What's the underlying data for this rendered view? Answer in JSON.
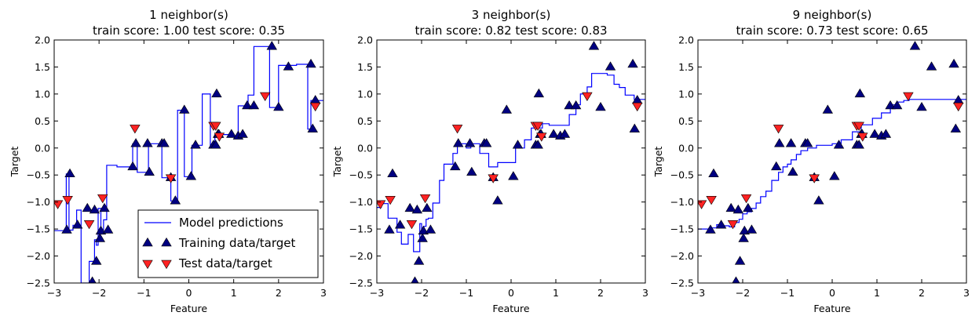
{
  "chart_data": [
    {
      "type": "line",
      "title": "1 neighbor(s)\ntrain score: 1.00 test score: 0.35",
      "xlabel": "Feature",
      "ylabel": "Target",
      "xlim": [
        -3,
        3
      ],
      "ylim": [
        -2.5,
        2.0
      ],
      "xticks": [
        "−3",
        "−2",
        "−1",
        "0",
        "1",
        "2",
        "3"
      ],
      "yticks": [
        "−2.5",
        "−2.0",
        "−1.5",
        "−1.0",
        "−0.5",
        "0.0",
        "0.5",
        "1.0",
        "1.5",
        "2.0"
      ],
      "prediction_line": {
        "x": [
          -3.0,
          -2.73,
          -2.73,
          -2.67,
          -2.67,
          -2.58,
          -2.58,
          -2.5,
          -2.5,
          -2.4,
          -2.4,
          -2.22,
          -2.22,
          -2.1,
          -2.1,
          -2.06,
          -2.06,
          -2.02,
          -2.02,
          -1.96,
          -1.96,
          -1.9,
          -1.9,
          -1.83,
          -1.83,
          -1.6,
          -1.6,
          -1.25,
          -1.25,
          -1.15,
          -1.15,
          -0.9,
          -0.9,
          -0.6,
          -0.6,
          -0.4,
          -0.4,
          -0.25,
          -0.25,
          -0.1,
          -0.1,
          0.07,
          0.07,
          0.3,
          0.3,
          0.48,
          0.48,
          0.58,
          0.58,
          0.63,
          0.63,
          0.7,
          0.7,
          0.95,
          0.95,
          1.1,
          1.1,
          1.18,
          1.18,
          1.32,
          1.32,
          1.45,
          1.45,
          1.8,
          1.8,
          2.0,
          2.0,
          2.4,
          2.4,
          2.65,
          2.65,
          2.72,
          2.72,
          2.8,
          2.8,
          3.0
        ],
        "y": [
          -1.53,
          -1.53,
          -0.48,
          -0.48,
          -1.52,
          -1.52,
          -1.43,
          -1.43,
          -1.15,
          -1.15,
          -2.5,
          -2.5,
          -2.1,
          -2.1,
          -1.7,
          -1.7,
          -1.8,
          -1.8,
          -1.12,
          -1.12,
          -1.52,
          -1.52,
          -1.33,
          -1.33,
          -0.32,
          -0.32,
          -0.35,
          -0.35,
          0.08,
          0.08,
          -0.45,
          -0.45,
          0.08,
          0.08,
          -0.55,
          -0.55,
          -0.98,
          -0.98,
          0.7,
          0.7,
          -0.53,
          -0.53,
          0.05,
          0.05,
          1.0,
          1.0,
          0.05,
          0.05,
          0.25,
          0.25,
          0.25,
          0.25,
          0.25,
          0.25,
          0.22,
          0.22,
          0.78,
          0.78,
          0.78,
          0.78,
          0.98,
          0.98,
          1.88,
          1.88,
          0.75,
          0.75,
          1.53,
          1.53,
          1.55,
          1.55,
          0.35,
          0.35,
          0.88,
          0.88,
          0.88,
          0.88
        ]
      },
      "training_data": {
        "x": [
          -2.72,
          -2.65,
          -2.48,
          -2.26,
          -2.15,
          -2.1,
          -2.06,
          -1.98,
          -1.96,
          -1.88,
          -1.8,
          -1.25,
          -1.18,
          -0.92,
          -0.88,
          -0.6,
          -0.55,
          -0.4,
          -0.3,
          -0.1,
          0.05,
          0.15,
          0.55,
          0.6,
          0.62,
          0.65,
          0.67,
          0.95,
          1.1,
          1.2,
          1.3,
          1.45,
          1.85,
          2.0,
          2.22,
          2.72,
          2.76,
          2.82
        ],
        "y": [
          -1.52,
          -0.48,
          -1.43,
          -1.12,
          -2.48,
          -1.15,
          -2.1,
          -1.68,
          -1.54,
          -1.12,
          -1.52,
          -0.35,
          0.08,
          0.08,
          -0.45,
          0.08,
          0.08,
          -0.55,
          -0.98,
          0.7,
          -0.53,
          0.05,
          0.05,
          0.05,
          1.0,
          0.25,
          0.25,
          0.25,
          0.22,
          0.25,
          0.78,
          0.78,
          1.88,
          0.75,
          1.5,
          1.55,
          0.35,
          0.88
        ]
      },
      "test_data": {
        "x": [
          -2.92,
          -2.7,
          -2.22,
          -1.92,
          -1.2,
          -0.4,
          0.55,
          0.6,
          0.68,
          1.7,
          2.82
        ],
        "y": [
          -1.03,
          -0.95,
          -1.4,
          -0.92,
          0.37,
          -0.55,
          0.42,
          0.42,
          0.22,
          0.97,
          0.78
        ]
      },
      "legend": {
        "position": "lower right",
        "entries": [
          "Model predictions",
          "Training data/target",
          "Test data/target"
        ]
      },
      "colors": {
        "line": "#0000ff",
        "training": "#000080",
        "test": "#ff2222"
      }
    },
    {
      "type": "line",
      "title": "3 neighbor(s)\ntrain score: 0.82 test score: 0.83",
      "xlabel": "Feature",
      "ylabel": "Target",
      "xlim": [
        -3,
        3
      ],
      "ylim": [
        -2.5,
        2.0
      ],
      "xticks": [
        "−3",
        "−2",
        "−1",
        "0",
        "1",
        "2",
        "3"
      ],
      "yticks": [
        "−2.5",
        "−2.0",
        "−1.5",
        "−1.0",
        "−0.5",
        "0.0",
        "0.5",
        "1.0",
        "1.5",
        "2.0"
      ],
      "prediction_line": {
        "x": [
          -3.0,
          -2.9,
          -2.9,
          -2.85,
          -2.85,
          -2.75,
          -2.75,
          -2.55,
          -2.55,
          -2.45,
          -2.45,
          -2.3,
          -2.3,
          -2.18,
          -2.18,
          -2.08,
          -2.08,
          -2.04,
          -2.04,
          -2.0,
          -2.0,
          -1.95,
          -1.95,
          -1.9,
          -1.9,
          -1.85,
          -1.85,
          -1.75,
          -1.75,
          -1.6,
          -1.6,
          -1.5,
          -1.5,
          -1.3,
          -1.3,
          -1.2,
          -1.2,
          -1.0,
          -1.0,
          -0.9,
          -0.9,
          -0.7,
          -0.7,
          -0.5,
          -0.5,
          -0.3,
          -0.3,
          -0.1,
          -0.1,
          0.1,
          0.1,
          0.3,
          0.3,
          0.45,
          0.45,
          0.6,
          0.6,
          0.7,
          0.7,
          0.85,
          0.85,
          1.05,
          1.05,
          1.3,
          1.3,
          1.45,
          1.45,
          1.55,
          1.55,
          1.7,
          1.7,
          1.8,
          1.8,
          2.15,
          2.15,
          2.3,
          2.3,
          2.42,
          2.42,
          2.55,
          2.55,
          2.75,
          2.75,
          3.0
        ],
        "y": [
          -1.1,
          -1.1,
          -1.0,
          -1.0,
          -1.03,
          -1.03,
          -1.3,
          -1.3,
          -1.56,
          -1.56,
          -1.78,
          -1.78,
          -1.6,
          -1.6,
          -1.92,
          -1.92,
          -1.92,
          -1.92,
          -1.4,
          -1.4,
          -1.5,
          -1.5,
          -1.45,
          -1.45,
          -1.32,
          -1.32,
          -1.3,
          -1.3,
          -1.02,
          -1.02,
          -0.6,
          -0.6,
          -0.3,
          -0.3,
          -0.1,
          -0.1,
          0.08,
          0.08,
          0.0,
          0.0,
          0.08,
          0.08,
          -0.1,
          -0.1,
          -0.35,
          -0.35,
          -0.27,
          -0.27,
          -0.27,
          -0.27,
          0.0,
          0.0,
          0.15,
          0.15,
          0.37,
          0.37,
          0.37,
          0.37,
          0.45,
          0.45,
          0.42,
          0.42,
          0.42,
          0.42,
          0.62,
          0.62,
          0.8,
          0.8,
          1.0,
          1.0,
          1.13,
          1.13,
          1.38,
          1.38,
          1.35,
          1.35,
          1.18,
          1.18,
          1.12,
          1.12,
          0.98,
          0.98,
          0.9,
          0.9
        ]
      },
      "training_data": {
        "x": [
          -2.72,
          -2.65,
          -2.48,
          -2.26,
          -2.15,
          -2.1,
          -2.06,
          -1.98,
          -1.96,
          -1.88,
          -1.8,
          -1.25,
          -1.18,
          -0.92,
          -0.88,
          -0.6,
          -0.55,
          -0.4,
          -0.3,
          -0.1,
          0.05,
          0.15,
          0.55,
          0.6,
          0.62,
          0.65,
          0.67,
          0.95,
          1.1,
          1.2,
          1.3,
          1.45,
          1.85,
          2.0,
          2.22,
          2.72,
          2.76,
          2.82
        ],
        "y": [
          -1.52,
          -0.48,
          -1.43,
          -1.12,
          -2.48,
          -1.15,
          -2.1,
          -1.68,
          -1.54,
          -1.12,
          -1.52,
          -0.35,
          0.08,
          0.08,
          -0.45,
          0.08,
          0.08,
          -0.55,
          -0.98,
          0.7,
          -0.53,
          0.05,
          0.05,
          0.05,
          1.0,
          0.25,
          0.25,
          0.25,
          0.22,
          0.25,
          0.78,
          0.78,
          1.88,
          0.75,
          1.5,
          1.55,
          0.35,
          0.88
        ]
      },
      "test_data": {
        "x": [
          -2.92,
          -2.7,
          -2.22,
          -1.92,
          -1.2,
          -0.4,
          0.55,
          0.6,
          0.68,
          1.7,
          2.82
        ],
        "y": [
          -1.03,
          -0.95,
          -1.4,
          -0.92,
          0.37,
          -0.55,
          0.42,
          0.42,
          0.22,
          0.97,
          0.78
        ]
      },
      "colors": {
        "line": "#0000ff",
        "training": "#000080",
        "test": "#ff2222"
      }
    },
    {
      "type": "line",
      "title": "9 neighbor(s)\ntrain score: 0.73 test score: 0.65",
      "xlabel": "Feature",
      "ylabel": "Target",
      "xlim": [
        -3,
        3
      ],
      "ylim": [
        -2.5,
        2.0
      ],
      "xticks": [
        "−3",
        "−2",
        "−1",
        "0",
        "1",
        "2",
        "3"
      ],
      "yticks": [
        "−2.5",
        "−2.0",
        "−1.5",
        "−1.0",
        "−0.5",
        "0.0",
        "0.5",
        "1.0",
        "1.5",
        "2.0"
      ],
      "prediction_line": {
        "x": [
          -3.0,
          -2.72,
          -2.72,
          -2.58,
          -2.58,
          -2.44,
          -2.44,
          -2.3,
          -2.3,
          -2.18,
          -2.18,
          -2.08,
          -2.08,
          -2.0,
          -2.0,
          -1.9,
          -1.9,
          -1.8,
          -1.8,
          -1.7,
          -1.7,
          -1.6,
          -1.6,
          -1.48,
          -1.48,
          -1.35,
          -1.35,
          -1.2,
          -1.2,
          -1.1,
          -1.1,
          -1.0,
          -1.0,
          -0.92,
          -0.92,
          -0.8,
          -0.8,
          -0.7,
          -0.7,
          -0.55,
          -0.55,
          -0.35,
          -0.35,
          -0.2,
          -0.2,
          0.0,
          0.0,
          0.2,
          0.2,
          0.45,
          0.45,
          0.65,
          0.65,
          0.9,
          0.9,
          1.1,
          1.1,
          1.3,
          1.3,
          1.45,
          1.45,
          1.6,
          1.6,
          1.72,
          1.72,
          3.0
        ],
        "y": [
          -1.5,
          -1.5,
          -1.48,
          -1.48,
          -1.42,
          -1.42,
          -1.44,
          -1.44,
          -1.46,
          -1.46,
          -1.38,
          -1.38,
          -1.32,
          -1.32,
          -1.22,
          -1.22,
          -1.18,
          -1.18,
          -1.12,
          -1.12,
          -1.02,
          -1.02,
          -0.9,
          -0.9,
          -0.8,
          -0.8,
          -0.6,
          -0.6,
          -0.45,
          -0.45,
          -0.35,
          -0.35,
          -0.3,
          -0.3,
          -0.22,
          -0.22,
          -0.12,
          -0.12,
          -0.05,
          -0.05,
          0.0,
          0.0,
          0.05,
          0.05,
          0.05,
          0.05,
          0.08,
          0.08,
          0.15,
          0.15,
          0.3,
          0.3,
          0.43,
          0.43,
          0.55,
          0.55,
          0.65,
          0.65,
          0.8,
          0.8,
          0.85,
          0.85,
          0.88,
          0.88,
          0.9,
          0.9
        ]
      },
      "training_data": {
        "x": [
          -2.72,
          -2.65,
          -2.48,
          -2.26,
          -2.15,
          -2.1,
          -2.06,
          -1.98,
          -1.96,
          -1.88,
          -1.8,
          -1.25,
          -1.18,
          -0.92,
          -0.88,
          -0.6,
          -0.55,
          -0.4,
          -0.3,
          -0.1,
          0.05,
          0.15,
          0.55,
          0.6,
          0.62,
          0.65,
          0.67,
          0.95,
          1.1,
          1.2,
          1.3,
          1.45,
          1.85,
          2.0,
          2.22,
          2.72,
          2.76,
          2.82
        ],
        "y": [
          -1.52,
          -0.48,
          -1.43,
          -1.12,
          -2.48,
          -1.15,
          -2.1,
          -1.68,
          -1.54,
          -1.12,
          -1.52,
          -0.35,
          0.08,
          0.08,
          -0.45,
          0.08,
          0.08,
          -0.55,
          -0.98,
          0.7,
          -0.53,
          0.05,
          0.05,
          0.05,
          1.0,
          0.25,
          0.25,
          0.25,
          0.22,
          0.25,
          0.78,
          0.78,
          1.88,
          0.75,
          1.5,
          1.55,
          0.35,
          0.88
        ]
      },
      "test_data": {
        "x": [
          -2.92,
          -2.7,
          -2.22,
          -1.92,
          -1.2,
          -0.4,
          0.55,
          0.6,
          0.68,
          1.7,
          2.82
        ],
        "y": [
          -1.03,
          -0.95,
          -1.4,
          -0.92,
          0.37,
          -0.55,
          0.42,
          0.42,
          0.22,
          0.97,
          0.78
        ]
      },
      "colors": {
        "line": "#0000ff",
        "training": "#000080",
        "test": "#ff2222"
      }
    }
  ]
}
